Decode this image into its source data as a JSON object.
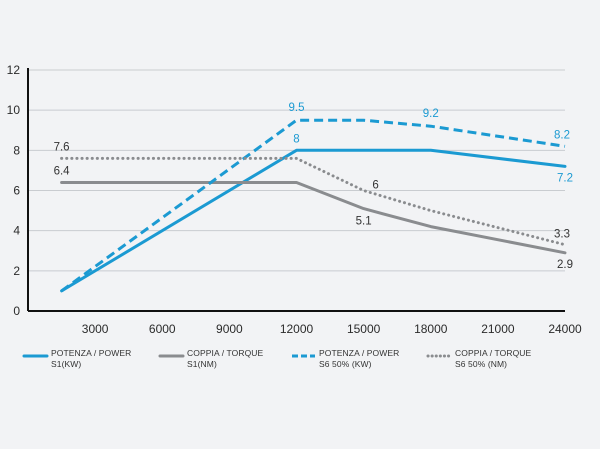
{
  "chart_data": {
    "type": "line",
    "x": [
      1500,
      3000,
      6000,
      9000,
      12000,
      15000,
      18000,
      21000,
      24000
    ],
    "xticks": [
      3000,
      6000,
      9000,
      12000,
      15000,
      18000,
      21000,
      24000
    ],
    "yticks": [
      0,
      2,
      4,
      6,
      8,
      10,
      12
    ],
    "xlim": [
      0,
      24000
    ],
    "ylim": [
      0,
      12
    ],
    "grid": "horizontal",
    "legend_position": "bottom",
    "colors": {
      "power": "#1b9ad2",
      "torque_s1": "#8a8c8f",
      "torque_s6": "#8a8c8f",
      "background": "#f2f3f5",
      "grid": "#c9ccd0"
    },
    "series": [
      {
        "name": "POTENZA / POWER S1(KW)",
        "legend_lines": [
          "POTENZA / POWER",
          "S1(KW)"
        ],
        "style": "solid",
        "color_key": "power",
        "points": [
          [
            1500,
            1
          ],
          [
            12000,
            8
          ],
          [
            18000,
            8
          ],
          [
            24000,
            7.2
          ]
        ],
        "labels": [
          {
            "x": 12000,
            "y": 8,
            "text": "8"
          },
          {
            "x": 24000,
            "y": 7.2,
            "text": "7.2"
          }
        ]
      },
      {
        "name": "COPPIA / TORQUE S1(NM)",
        "legend_lines": [
          "COPPIA / TORQUE",
          "S1(NM)"
        ],
        "style": "solid",
        "color_key": "torque_s1",
        "points": [
          [
            1500,
            6.4
          ],
          [
            12000,
            6.4
          ],
          [
            15000,
            5.1
          ],
          [
            18000,
            4.2
          ],
          [
            24000,
            2.9
          ]
        ],
        "labels": [
          {
            "x": 1500,
            "y": 6.4,
            "text": "6.4"
          },
          {
            "x": 15000,
            "y": 5.1,
            "text": "5.1"
          },
          {
            "x": 24000,
            "y": 2.9,
            "text": "2.9"
          }
        ]
      },
      {
        "name": "POTENZA / POWER S6 50% (KW)",
        "legend_lines": [
          "POTENZA / POWER",
          "S6 50% (KW)"
        ],
        "style": "dashed",
        "color_key": "power",
        "points": [
          [
            1500,
            1
          ],
          [
            12000,
            9.5
          ],
          [
            15000,
            9.5
          ],
          [
            18000,
            9.2
          ],
          [
            24000,
            8.2
          ]
        ],
        "labels": [
          {
            "x": 12000,
            "y": 9.5,
            "text": "9.5"
          },
          {
            "x": 18000,
            "y": 9.2,
            "text": "9.2"
          },
          {
            "x": 24000,
            "y": 8.2,
            "text": "8.2"
          }
        ]
      },
      {
        "name": "COPPIA / TORQUE S6 50% (NM)",
        "legend_lines": [
          "COPPIA / TORQUE",
          "S6 50% (NM)"
        ],
        "style": "dotted",
        "color_key": "torque_s6",
        "points": [
          [
            1500,
            7.6
          ],
          [
            12000,
            7.6
          ],
          [
            15000,
            6
          ],
          [
            18000,
            5
          ],
          [
            24000,
            3.3
          ]
        ],
        "labels": [
          {
            "x": 1500,
            "y": 7.6,
            "text": "7.6"
          },
          {
            "x": 15000,
            "y": 6,
            "text": "6"
          },
          {
            "x": 24000,
            "y": 3.3,
            "text": "3.3"
          }
        ]
      }
    ]
  }
}
